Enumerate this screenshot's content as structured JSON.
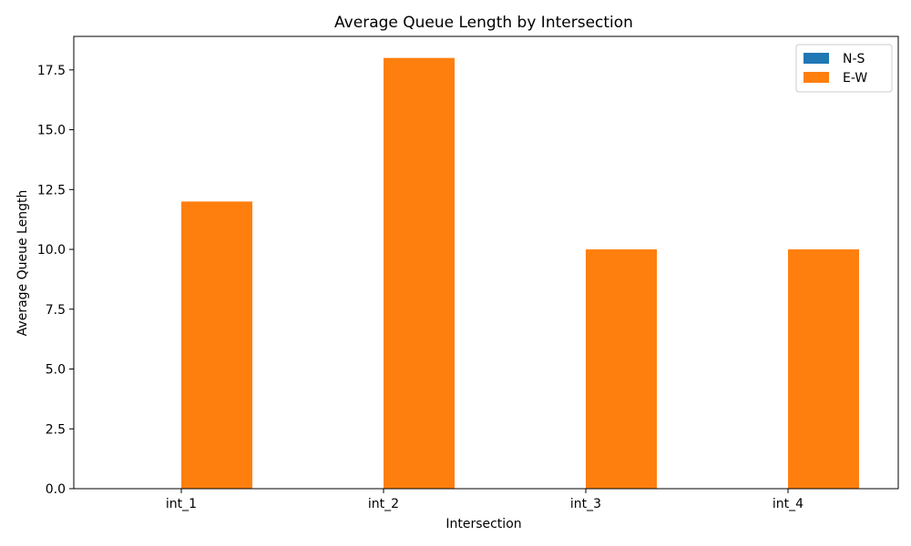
{
  "chart_data": {
    "type": "bar",
    "title": "Average Queue Length by Intersection",
    "xlabel": "Intersection",
    "ylabel": "Average Queue Length",
    "categories": [
      "int_1",
      "int_2",
      "int_3",
      "int_4"
    ],
    "series": [
      {
        "name": "N-S",
        "values": [
          0,
          0,
          0,
          0
        ],
        "color": "#1f77b4"
      },
      {
        "name": "E-W",
        "values": [
          12,
          18,
          10,
          10
        ],
        "color": "#ff7f0e"
      }
    ],
    "ylim": [
      0,
      18.9
    ],
    "yticks": [
      "0.0",
      "2.5",
      "5.0",
      "7.5",
      "10.0",
      "12.5",
      "15.0",
      "17.5"
    ],
    "grid": false,
    "legend": "top-right"
  }
}
